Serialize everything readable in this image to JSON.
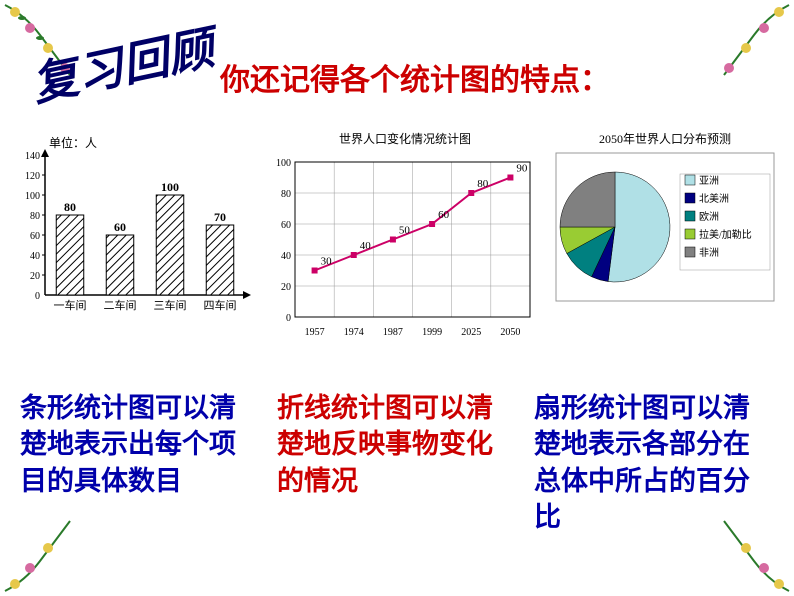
{
  "review_title": "复习回顾",
  "subtitle": "你还记得各个统计图的特点：",
  "bar_chart": {
    "type": "bar",
    "unit_label": "单位：人",
    "categories": [
      "一车间",
      "二车间",
      "三车间",
      "四车间"
    ],
    "values": [
      80,
      60,
      100,
      70
    ],
    "ylim": [
      0,
      140
    ],
    "ytick_step": 20,
    "bar_color": "#ffffff",
    "bar_stroke": "#000000",
    "background_color": "#ffffff",
    "axis_color": "#000000",
    "label_fontsize": 11
  },
  "line_chart": {
    "type": "line",
    "title": "世界人口变化情况统计图",
    "x_labels": [
      "1957",
      "1974",
      "1987",
      "1999",
      "2025",
      "2050"
    ],
    "values": [
      30,
      40,
      50,
      60,
      80,
      90
    ],
    "ylim": [
      0,
      100
    ],
    "ytick_step": 20,
    "line_color": "#cc0066",
    "marker_color": "#cc0066",
    "grid_color": "#999999",
    "background_color": "#ffffff",
    "title_fontsize": 12,
    "axis_fontsize": 10
  },
  "pie_chart": {
    "type": "pie",
    "title": "2050年世界人口分布预测",
    "slices": [
      {
        "label": "亚洲",
        "value": 52,
        "color": "#b0e0e6"
      },
      {
        "label": "北美洲",
        "value": 5,
        "color": "#000080"
      },
      {
        "label": "欧洲",
        "value": 10,
        "color": "#008080"
      },
      {
        "label": "拉美/加勒比",
        "value": 8,
        "color": "#99cc33"
      },
      {
        "label": "非洲",
        "value": 25,
        "color": "#808080"
      }
    ],
    "background_color": "#ffffff",
    "title_fontsize": 12,
    "legend_fontsize": 10
  },
  "descriptions": {
    "bar": "条形统计图可以清楚地表示出每个项目的具体数目",
    "line": "折线统计图可以清楚地反映事物变化的情况",
    "pie": "扇形统计图可以清楚地表示各部分在总体中所占的百分比"
  },
  "decoration_colors": {
    "vine": "#2a7a2a",
    "flower_yellow": "#e6c84a",
    "flower_pink": "#d66aa0"
  }
}
